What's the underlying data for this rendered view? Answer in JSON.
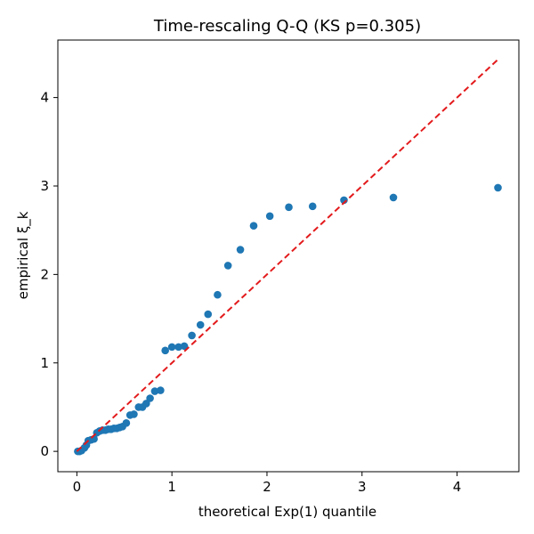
{
  "chart_data": {
    "type": "scatter",
    "title": "Time-rescaling Q-Q (KS p=0.305)",
    "xlabel": "theoretical Exp(1) quantile",
    "ylabel": "empirical ξ_k",
    "xlim": [
      -0.2,
      4.65
    ],
    "ylim": [
      -0.23,
      4.65
    ],
    "xticks": [
      0,
      1,
      2,
      3,
      4
    ],
    "yticks": [
      0,
      1,
      2,
      3,
      4
    ],
    "grid": false,
    "colors": {
      "points": "#1f77b4",
      "reference": "#e31a1c"
    },
    "reference_line": {
      "style": "dashed",
      "x": [
        0,
        4.43
      ],
      "y": [
        0,
        4.43
      ]
    },
    "points": {
      "x": [
        0.01,
        0.03,
        0.05,
        0.08,
        0.1,
        0.12,
        0.15,
        0.18,
        0.21,
        0.24,
        0.27,
        0.3,
        0.33,
        0.36,
        0.39,
        0.42,
        0.45,
        0.48,
        0.52,
        0.56,
        0.6,
        0.65,
        0.69,
        0.73,
        0.77,
        0.82,
        0.88,
        0.93,
        1.0,
        1.07,
        1.13,
        1.21,
        1.3,
        1.38,
        1.48,
        1.59,
        1.72,
        1.86,
        2.03,
        2.23,
        2.48,
        2.81,
        3.33,
        4.43
      ],
      "y": [
        0.0,
        0.0,
        0.01,
        0.04,
        0.07,
        0.12,
        0.13,
        0.14,
        0.21,
        0.23,
        0.24,
        0.24,
        0.25,
        0.25,
        0.26,
        0.26,
        0.27,
        0.28,
        0.32,
        0.41,
        0.42,
        0.5,
        0.5,
        0.54,
        0.6,
        0.68,
        0.69,
        1.14,
        1.18,
        1.18,
        1.19,
        1.31,
        1.43,
        1.55,
        1.77,
        2.1,
        2.28,
        2.55,
        2.66,
        2.76,
        2.77,
        2.84,
        2.87,
        2.98
      ]
    }
  }
}
